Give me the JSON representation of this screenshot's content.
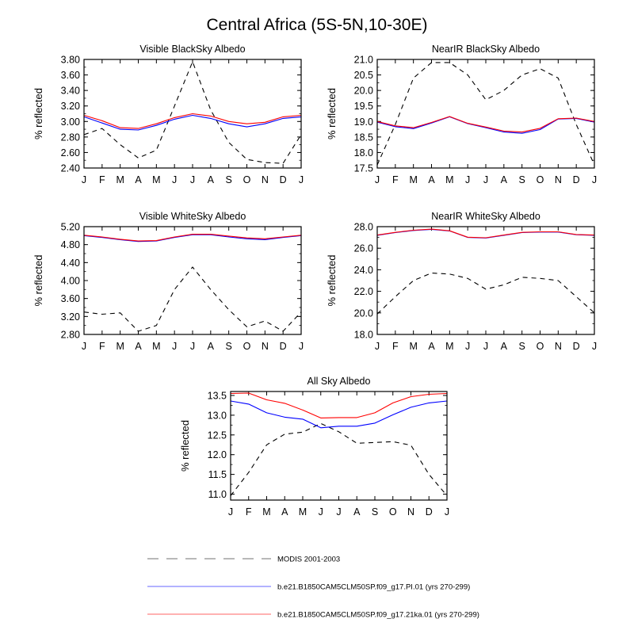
{
  "figure": {
    "title": "Central Africa (5S-5N,10-30E)"
  },
  "legend": {
    "position": "bottom",
    "entries": [
      {
        "label": "MODIS 2001-2003",
        "color": "#000000",
        "dash": "dashed"
      },
      {
        "label": "b.e21.B1850CAM5CLM50SP.f09_g17.PI.01 (yrs 270-299)",
        "color": "#0000ff",
        "dash": "solid"
      },
      {
        "label": "b.e21.B1850CAM5CLM50SP.f09_g17.21ka.01 (yrs 270-299)",
        "color": "#ff0000",
        "dash": "solid"
      }
    ]
  },
  "chart_data": [
    {
      "type": "line",
      "title": "Visible BlackSky Albedo",
      "ylabel": "% reflected",
      "categories": [
        "J",
        "F",
        "M",
        "A",
        "M",
        "J",
        "J",
        "A",
        "S",
        "O",
        "N",
        "D",
        "J"
      ],
      "ylim": [
        2.4,
        3.8
      ],
      "yticks": [
        "2.40",
        "2.60",
        "2.80",
        "3.00",
        "3.20",
        "3.40",
        "3.60",
        "3.80"
      ],
      "grid": false,
      "series": [
        {
          "name": "MODIS 2001-2003",
          "color": "#000000",
          "dash": "dashed",
          "values": [
            2.83,
            2.91,
            2.7,
            2.53,
            2.63,
            3.2,
            3.77,
            3.15,
            2.73,
            2.51,
            2.47,
            2.46,
            2.83
          ]
        },
        {
          "name": "b.e21.B1850CAM5CLM50SP.f09_g17.PI.01 (yrs 270-299)",
          "color": "#0000ff",
          "dash": "solid",
          "values": [
            3.06,
            2.98,
            2.9,
            2.89,
            2.95,
            3.03,
            3.08,
            3.04,
            2.97,
            2.93,
            2.97,
            3.04,
            3.06
          ]
        },
        {
          "name": "b.e21.B1850CAM5CLM50SP.f09_g17.21ka.01 (yrs 270-299)",
          "color": "#ff0000",
          "dash": "solid",
          "values": [
            3.08,
            3.01,
            2.92,
            2.91,
            2.97,
            3.05,
            3.1,
            3.07,
            3.0,
            2.97,
            2.99,
            3.06,
            3.08
          ]
        }
      ]
    },
    {
      "type": "line",
      "title": "NearIR BlackSky Albedo",
      "ylabel": "% reflected",
      "categories": [
        "J",
        "F",
        "M",
        "A",
        "M",
        "J",
        "J",
        "A",
        "S",
        "O",
        "N",
        "D",
        "J"
      ],
      "ylim": [
        17.5,
        21.0
      ],
      "yticks": [
        "17.5",
        "18.0",
        "18.5",
        "19.0",
        "19.5",
        "20.0",
        "20.5",
        "21.0"
      ],
      "grid": false,
      "series": [
        {
          "name": "MODIS 2001-2003",
          "color": "#000000",
          "dash": "dashed",
          "values": [
            17.6,
            18.9,
            20.4,
            20.9,
            20.9,
            20.5,
            19.7,
            20.0,
            20.5,
            20.7,
            20.4,
            18.9,
            17.6
          ]
        },
        {
          "name": "b.e21.B1850CAM5CLM50SP.f09_g17.PI.01 (yrs 270-299)",
          "color": "#0000ff",
          "dash": "solid",
          "values": [
            18.98,
            18.83,
            18.77,
            18.95,
            19.15,
            18.93,
            18.8,
            18.66,
            18.62,
            18.74,
            19.08,
            19.1,
            18.98
          ]
        },
        {
          "name": "b.e21.B1850CAM5CLM50SP.f09_g17.21ka.01 (yrs 270-299)",
          "color": "#ff0000",
          "dash": "solid",
          "values": [
            19.0,
            18.86,
            18.8,
            18.97,
            19.16,
            18.94,
            18.82,
            18.69,
            18.66,
            18.78,
            19.09,
            19.11,
            19.0
          ]
        }
      ]
    },
    {
      "type": "line",
      "title": "Visible WhiteSky Albedo",
      "ylabel": "% reflected",
      "categories": [
        "J",
        "F",
        "M",
        "A",
        "M",
        "J",
        "J",
        "A",
        "S",
        "O",
        "N",
        "D",
        "J"
      ],
      "ylim": [
        2.8,
        5.2
      ],
      "yticks": [
        "2.80",
        "3.20",
        "3.60",
        "4.00",
        "4.40",
        "4.80",
        "5.20"
      ],
      "grid": false,
      "series": [
        {
          "name": "MODIS 2001-2003",
          "color": "#000000",
          "dash": "dashed",
          "values": [
            3.3,
            3.25,
            3.28,
            2.87,
            3.0,
            3.8,
            4.3,
            3.8,
            3.35,
            2.97,
            3.1,
            2.87,
            3.3
          ]
        },
        {
          "name": "b.e21.B1850CAM5CLM50SP.f09_g17.PI.01 (yrs 270-299)",
          "color": "#0000ff",
          "dash": "solid",
          "values": [
            5.0,
            4.96,
            4.91,
            4.87,
            4.88,
            4.96,
            5.02,
            5.02,
            4.97,
            4.93,
            4.91,
            4.96,
            5.0
          ]
        },
        {
          "name": "b.e21.B1850CAM5CLM50SP.f09_g17.21ka.01 (yrs 270-299)",
          "color": "#ff0000",
          "dash": "solid",
          "values": [
            5.01,
            4.97,
            4.92,
            4.88,
            4.89,
            4.97,
            5.03,
            5.03,
            4.99,
            4.95,
            4.93,
            4.97,
            5.01
          ]
        }
      ]
    },
    {
      "type": "line",
      "title": "NearIR WhiteSky Albedo",
      "ylabel": "% reflected",
      "categories": [
        "J",
        "F",
        "M",
        "A",
        "M",
        "J",
        "J",
        "A",
        "S",
        "O",
        "N",
        "D",
        "J"
      ],
      "ylim": [
        18.0,
        28.0
      ],
      "yticks": [
        "18.0",
        "20.0",
        "22.0",
        "24.0",
        "26.0",
        "28.0"
      ],
      "grid": false,
      "series": [
        {
          "name": "MODIS 2001-2003",
          "color": "#000000",
          "dash": "dashed",
          "values": [
            19.9,
            21.5,
            23.0,
            23.7,
            23.6,
            23.2,
            22.2,
            22.6,
            23.3,
            23.2,
            23.0,
            21.5,
            20.0
          ]
        },
        {
          "name": "b.e21.B1850CAM5CLM50SP.f09_g17.PI.01 (yrs 270-299)",
          "color": "#0000ff",
          "dash": "solid",
          "values": [
            27.2,
            27.45,
            27.65,
            27.75,
            27.6,
            27.0,
            26.95,
            27.2,
            27.45,
            27.5,
            27.5,
            27.25,
            27.2
          ]
        },
        {
          "name": "b.e21.B1850CAM5CLM50SP.f09_g17.21ka.01 (yrs 270-299)",
          "color": "#ff0000",
          "dash": "solid",
          "values": [
            27.22,
            27.47,
            27.67,
            27.77,
            27.62,
            27.02,
            26.97,
            27.22,
            27.47,
            27.52,
            27.52,
            27.27,
            27.22
          ]
        }
      ]
    },
    {
      "type": "line",
      "title": "All Sky Albedo",
      "ylabel": "% reflected",
      "categories": [
        "J",
        "F",
        "M",
        "A",
        "M",
        "J",
        "J",
        "A",
        "S",
        "O",
        "N",
        "D",
        "J"
      ],
      "ylim": [
        10.85,
        13.6
      ],
      "yticks": [
        "11.0",
        "11.5",
        "12.0",
        "12.5",
        "13.0",
        "13.5"
      ],
      "ytickvalues": [
        11.0,
        11.5,
        12.0,
        12.5,
        13.0,
        13.5
      ],
      "grid": false,
      "series": [
        {
          "name": "MODIS 2001-2003",
          "color": "#000000",
          "dash": "dashed",
          "values": [
            10.96,
            11.55,
            12.25,
            12.52,
            12.57,
            12.79,
            12.58,
            12.29,
            12.31,
            12.33,
            12.24,
            11.5,
            10.96
          ]
        },
        {
          "name": "b.e21.B1850CAM5CLM50SP.f09_g17.PI.01 (yrs 270-299)",
          "color": "#0000ff",
          "dash": "solid",
          "values": [
            13.36,
            13.28,
            13.06,
            12.95,
            12.9,
            12.68,
            12.72,
            12.72,
            12.8,
            13.01,
            13.2,
            13.31,
            13.36
          ]
        },
        {
          "name": "b.e21.B1850CAM5CLM50SP.f09_g17.21ka.01 (yrs 270-299)",
          "color": "#ff0000",
          "dash": "solid",
          "values": [
            13.55,
            13.56,
            13.39,
            13.3,
            13.13,
            12.93,
            12.94,
            12.94,
            13.06,
            13.31,
            13.47,
            13.53,
            13.55
          ]
        }
      ]
    }
  ]
}
